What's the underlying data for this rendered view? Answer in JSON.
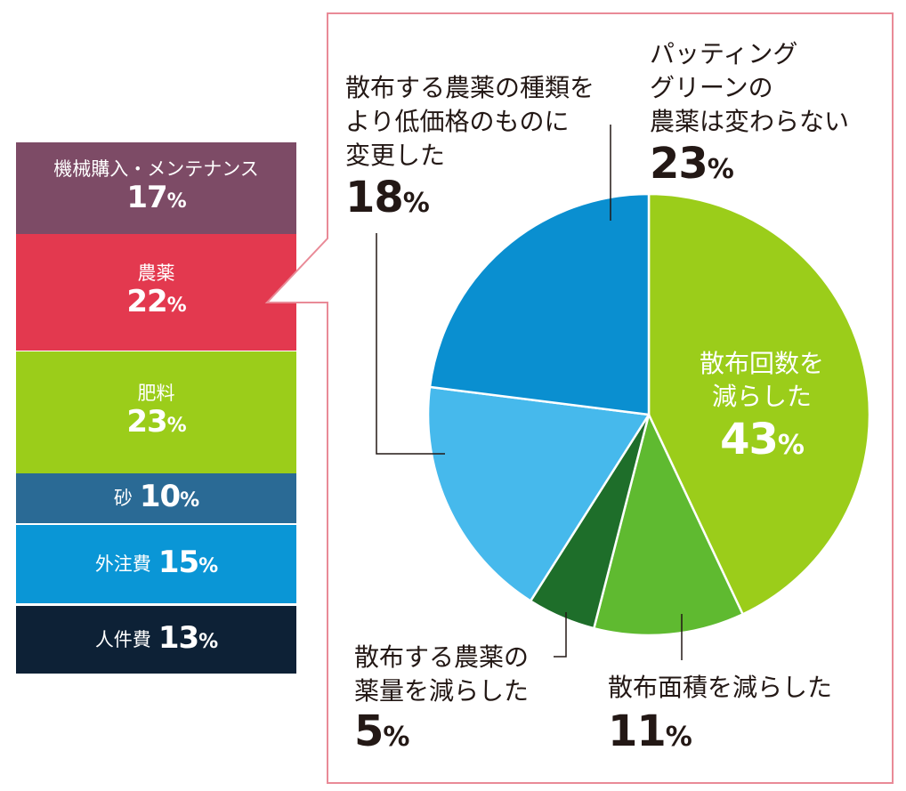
{
  "cost_breakdown": {
    "segments": [
      {
        "label": "機械購入・メンテナンス",
        "value": 17,
        "color": "#7d4b66"
      },
      {
        "label": "農薬",
        "value": 22,
        "color": "#e3394f"
      },
      {
        "label": "肥料",
        "value": 23,
        "color": "#9bcd1a"
      },
      {
        "label": "砂",
        "value": 10,
        "color": "#2a6a95"
      },
      {
        "label": "外注費",
        "value": 15,
        "color": "#0a96d6"
      },
      {
        "label": "人件費",
        "value": 13,
        "color": "#0d2136"
      }
    ],
    "highlight_color": "#e98a97"
  },
  "chart_data": {
    "type": "pie",
    "slices": [
      {
        "label": "散布回数を減らした",
        "value": 43,
        "color": "#9bcd1a"
      },
      {
        "label": "散布面積を減らした",
        "value": 11,
        "color": "#5fba30"
      },
      {
        "label": "散布する農薬の薬量を減らした",
        "value": 5,
        "color": "#1e6e2a"
      },
      {
        "label": "散布する農薬の種類をより低価格のものに変更した",
        "value": 18,
        "color": "#46b9ec"
      },
      {
        "label": "パッティンググリーンの農薬は変わらない",
        "value": 23,
        "color": "#0a8fd0"
      }
    ],
    "unit": "%"
  }
}
